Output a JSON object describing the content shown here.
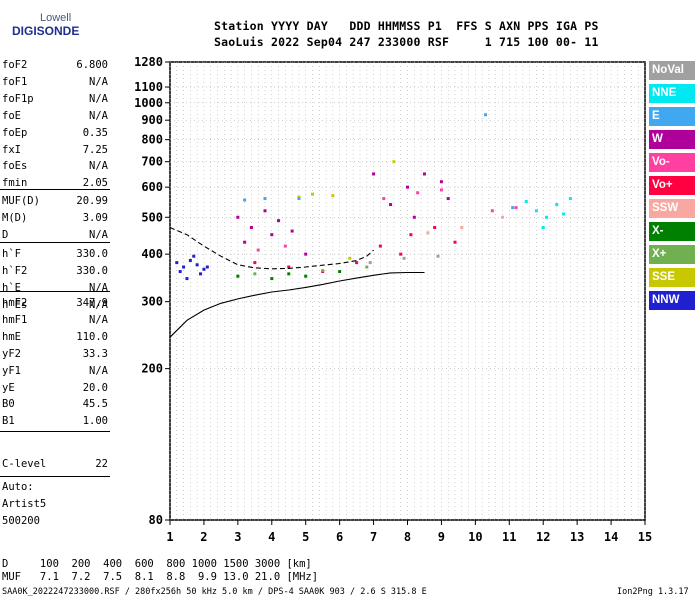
{
  "logo": {
    "top": "Lowell",
    "main": "DIGISONDE"
  },
  "header": {
    "line1": "Station YYYY DAY   DDD HHMMSS P1  FFS S AXN PPS IGA PS",
    "line2": "SaoLuis 2022 Sep04 247 233000 RSF     1 715 100 00- 11"
  },
  "params_group1": [
    {
      "name": "foF2",
      "value": "6.800"
    },
    {
      "name": "foF1",
      "value": "N/A"
    },
    {
      "name": "foF1p",
      "value": "N/A"
    },
    {
      "name": "foE",
      "value": "N/A"
    },
    {
      "name": "foEp",
      "value": "0.35"
    },
    {
      "name": "fxI",
      "value": "7.25"
    },
    {
      "name": "foEs",
      "value": "N/A"
    },
    {
      "name": "fmin",
      "value": "2.05"
    }
  ],
  "params_group2": [
    {
      "name": "MUF(D)",
      "value": "20.99"
    },
    {
      "name": "M(D)",
      "value": "3.09"
    },
    {
      "name": "D",
      "value": "N/A"
    }
  ],
  "params_group3": [
    {
      "name": "h`F",
      "value": "330.0"
    },
    {
      "name": "h`F2",
      "value": "330.0"
    },
    {
      "name": "h`E",
      "value": "N/A"
    },
    {
      "name": "h`Es",
      "value": "N/A"
    }
  ],
  "params_group4": [
    {
      "name": "hmF2",
      "value": "347.9"
    },
    {
      "name": "hmF1",
      "value": "N/A"
    },
    {
      "name": "hmE",
      "value": "110.0"
    },
    {
      "name": "yF2",
      "value": "33.3"
    },
    {
      "name": "yF1",
      "value": "N/A"
    },
    {
      "name": "yE",
      "value": "20.0"
    },
    {
      "name": "B0",
      "value": "45.5"
    },
    {
      "name": "B1",
      "value": "1.00"
    }
  ],
  "clevel": {
    "name": "C-level",
    "value": "22"
  },
  "auto": {
    "line1": "Auto:",
    "line2": "Artist5",
    "line3": "500200"
  },
  "legend": [
    {
      "label": "NoVal",
      "color": "#a0a0a0"
    },
    {
      "label": "NNE",
      "color": "#00e8f0"
    },
    {
      "label": "E",
      "color": "#40a8f0"
    },
    {
      "label": "W",
      "color": "#b0009a"
    },
    {
      "label": "Vo-",
      "color": "#ff40a0"
    },
    {
      "label": "Vo+",
      "color": "#ff0040"
    },
    {
      "label": "SSW",
      "color": "#f8a8a0"
    },
    {
      "label": "X-",
      "color": "#008000"
    },
    {
      "label": "X+",
      "color": "#70b050"
    },
    {
      "label": "SSE",
      "color": "#c8c800"
    },
    {
      "label": "NNW",
      "color": "#2020d0"
    }
  ],
  "footer": {
    "d_line": "D     100  200  400  600  800 1000 1500 3000 [km]",
    "muf_line": "MUF   7.1  7.2  7.5  8.1  8.8  9.9 13.0 21.0 [MHz]",
    "info_line": "SAA0K_2022247233000.RSF / 280fx256h 50 kHz 5.0 km / DPS-4 SAA0K 903 / 2.6 S 315.8 E",
    "version": "Ion2Png 1.3.17"
  },
  "chart_data": {
    "type": "scatter",
    "title": "",
    "xlabel": "",
    "ylabel": "",
    "xlim": [
      1,
      15
    ],
    "ylim": [
      80,
      1280
    ],
    "y_scale": "log",
    "x_ticks": [
      "1",
      "2",
      "3",
      "4",
      "5",
      "6",
      "7",
      "8",
      "9",
      "10",
      "11",
      "12",
      "13",
      "14",
      "15"
    ],
    "y_ticks": [
      {
        "value": 80,
        "label": "80"
      },
      {
        "value": 200,
        "label": "200"
      },
      {
        "value": 300,
        "label": "300"
      },
      {
        "value": 400,
        "label": "400"
      },
      {
        "value": 500,
        "label": "500"
      },
      {
        "value": 600,
        "label": "600"
      },
      {
        "value": 700,
        "label": "700"
      },
      {
        "value": 800,
        "label": "800"
      },
      {
        "value": 900,
        "label": "900"
      },
      {
        "value": 1000,
        "label": "1000"
      },
      {
        "value": 1100,
        "label": "1100"
      },
      {
        "value": 1280,
        "label": "1280"
      }
    ],
    "grid": true,
    "series": [
      {
        "name": "NNW",
        "points": [
          [
            1.2,
            380
          ],
          [
            1.4,
            370
          ],
          [
            1.6,
            385
          ],
          [
            1.8,
            375
          ],
          [
            2.0,
            365
          ],
          [
            1.3,
            360
          ],
          [
            1.7,
            395
          ],
          [
            1.9,
            355
          ],
          [
            1.5,
            345
          ],
          [
            2.1,
            370
          ]
        ]
      },
      {
        "name": "W",
        "points": [
          [
            3.0,
            500
          ],
          [
            3.4,
            470
          ],
          [
            3.8,
            520
          ],
          [
            4.2,
            490
          ],
          [
            4.6,
            460
          ],
          [
            3.2,
            430
          ],
          [
            4.0,
            450
          ],
          [
            5.0,
            400
          ],
          [
            7.0,
            650
          ],
          [
            8.0,
            600
          ],
          [
            8.5,
            650
          ],
          [
            9.0,
            620
          ],
          [
            7.5,
            540
          ],
          [
            8.2,
            500
          ],
          [
            9.2,
            560
          ]
        ]
      },
      {
        "name": "Vo+",
        "points": [
          [
            3.5,
            380
          ],
          [
            4.5,
            370
          ],
          [
            5.5,
            360
          ],
          [
            6.5,
            380
          ],
          [
            7.2,
            420
          ],
          [
            8.1,
            450
          ],
          [
            8.8,
            470
          ],
          [
            7.8,
            400
          ],
          [
            9.4,
            430
          ]
        ]
      },
      {
        "name": "Vo-",
        "points": [
          [
            7.3,
            560
          ],
          [
            8.3,
            580
          ],
          [
            9.0,
            590
          ],
          [
            10.5,
            520
          ],
          [
            11.2,
            530
          ],
          [
            3.6,
            410
          ],
          [
            4.4,
            420
          ]
        ]
      },
      {
        "name": "NNE",
        "points": [
          [
            11.8,
            520
          ],
          [
            12.1,
            500
          ],
          [
            12.4,
            540
          ],
          [
            12.6,
            510
          ],
          [
            12.0,
            470
          ],
          [
            11.5,
            550
          ],
          [
            12.8,
            560
          ]
        ]
      },
      {
        "name": "X-",
        "points": [
          [
            3.0,
            350
          ],
          [
            4.0,
            345
          ],
          [
            5.0,
            350
          ],
          [
            6.0,
            360
          ],
          [
            4.5,
            355
          ]
        ]
      },
      {
        "name": "X+",
        "points": [
          [
            3.5,
            355
          ],
          [
            5.5,
            362
          ],
          [
            6.8,
            370
          ]
        ]
      },
      {
        "name": "SSE",
        "points": [
          [
            5.2,
            575
          ],
          [
            5.8,
            570
          ],
          [
            4.8,
            565
          ],
          [
            6.3,
            390
          ],
          [
            7.6,
            700
          ]
        ]
      },
      {
        "name": "E",
        "points": [
          [
            3.2,
            555
          ],
          [
            3.8,
            560
          ],
          [
            4.8,
            560
          ],
          [
            10.3,
            930
          ],
          [
            11.1,
            530
          ]
        ]
      },
      {
        "name": "SSW",
        "points": [
          [
            8.6,
            455
          ],
          [
            9.6,
            470
          ],
          [
            10.8,
            500
          ]
        ]
      },
      {
        "name": "NoVal",
        "points": [
          [
            6.9,
            380
          ],
          [
            7.9,
            390
          ],
          [
            8.9,
            395
          ]
        ]
      }
    ],
    "profile_curve": [
      [
        1.0,
        242
      ],
      [
        1.5,
        268
      ],
      [
        2.0,
        285
      ],
      [
        2.5,
        297
      ],
      [
        3.0,
        305
      ],
      [
        3.5,
        312
      ],
      [
        4.0,
        318
      ],
      [
        4.5,
        322
      ],
      [
        5.0,
        327
      ],
      [
        5.5,
        333
      ],
      [
        6.0,
        340
      ],
      [
        6.5,
        346
      ],
      [
        7.0,
        352
      ],
      [
        7.5,
        357
      ],
      [
        8.0,
        358
      ],
      [
        8.5,
        358
      ]
    ],
    "trace_curve": [
      [
        1.0,
        470
      ],
      [
        1.5,
        450
      ],
      [
        2.0,
        420
      ],
      [
        2.5,
        395
      ],
      [
        3.0,
        375
      ],
      [
        3.5,
        368
      ],
      [
        4.0,
        366
      ],
      [
        4.5,
        367
      ],
      [
        5.0,
        370
      ],
      [
        5.5,
        374
      ],
      [
        6.0,
        378
      ],
      [
        6.5,
        385
      ],
      [
        6.8,
        395
      ],
      [
        7.0,
        410
      ]
    ]
  }
}
